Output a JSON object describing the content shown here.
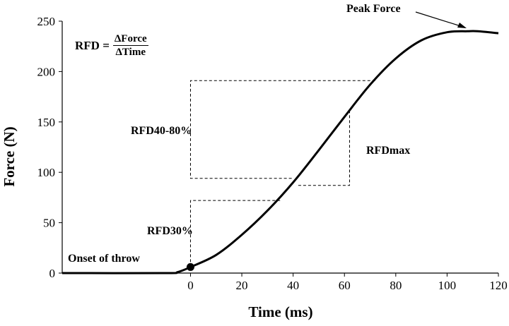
{
  "chart_data": {
    "type": "line",
    "xlabel": "Time (ms)",
    "ylabel": "Force (N)",
    "xlim": [
      -50,
      120
    ],
    "ylim": [
      0,
      250
    ],
    "xticks": [
      0,
      20,
      40,
      60,
      80,
      100,
      120
    ],
    "yticks": [
      0,
      50,
      100,
      150,
      200,
      250
    ],
    "grid": false,
    "series": [
      {
        "values_x": [
          -50,
          -10,
          -5,
          0,
          10,
          20,
          30,
          40,
          50,
          60,
          70,
          80,
          90,
          100,
          108,
          112,
          120
        ],
        "values_y": [
          0,
          0,
          1,
          6,
          18,
          38,
          62,
          90,
          122,
          155,
          187,
          213,
          231,
          239,
          240,
          240,
          238
        ]
      }
    ],
    "marker": {
      "x": 0,
      "y": 6,
      "label": "Onset of throw"
    },
    "annotations": {
      "peak": {
        "label": "Peak Force",
        "x": 108,
        "y": 240
      },
      "rfd30": {
        "label": "RFD30%",
        "x_range": [
          0,
          35
        ],
        "y_range": [
          6,
          72
        ]
      },
      "rfd40_80": {
        "label": "RFD40-80%",
        "x_range": [
          0,
          72
        ],
        "y_range": [
          94,
          191
        ]
      },
      "rfdmax": {
        "label": "RFDmax",
        "x_range": [
          42,
          62
        ],
        "y_range": [
          87,
          162
        ]
      }
    },
    "formula": {
      "lhs": "RFD =",
      "numerator": "ΔForce",
      "denominator": "ΔTime"
    }
  }
}
